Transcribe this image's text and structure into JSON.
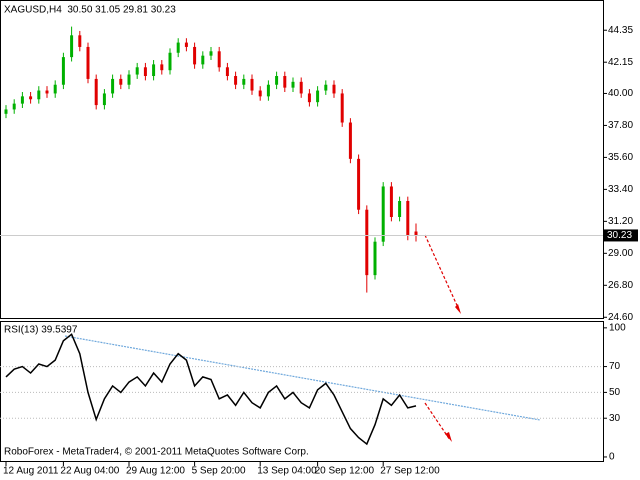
{
  "chart_data": [
    {
      "type": "candlestick",
      "title": "XAGUSD,H4  30.50 31.05 29.81 30.23",
      "open": [
        38.6,
        38.9,
        39.3,
        39.8,
        39.6,
        40.2,
        40.0,
        40.6,
        42.5,
        44.0,
        43.2,
        41.0,
        39.2,
        40.0,
        41.0,
        40.6,
        41.3,
        41.8,
        41.2,
        42.0,
        41.6,
        42.8,
        43.5,
        43.2,
        42.0,
        42.6,
        42.9,
        41.8,
        41.2,
        40.6,
        41.0,
        40.2,
        39.8,
        40.6,
        41.2,
        40.4,
        40.8,
        40.0,
        39.4,
        40.2,
        40.6,
        40.0,
        38.0,
        35.5,
        32.0,
        27.5,
        29.8,
        33.6,
        31.5,
        32.6,
        30.5
      ],
      "high": [
        39.2,
        39.6,
        40.1,
        40.1,
        40.5,
        40.5,
        40.9,
        42.8,
        44.6,
        44.3,
        43.5,
        41.3,
        40.3,
        41.3,
        41.3,
        41.6,
        42.1,
        42.1,
        42.3,
        42.3,
        43.1,
        43.8,
        43.8,
        43.5,
        42.9,
        43.2,
        43.2,
        42.1,
        41.5,
        41.3,
        41.3,
        40.5,
        40.9,
        41.5,
        41.5,
        41.1,
        41.1,
        40.3,
        40.5,
        40.9,
        40.9,
        40.3,
        38.3,
        35.8,
        32.3,
        30.1,
        33.9,
        33.9,
        32.9,
        32.9,
        31.05
      ],
      "low": [
        38.3,
        38.6,
        39.0,
        39.3,
        39.3,
        39.7,
        39.7,
        40.3,
        42.2,
        42.9,
        40.7,
        38.9,
        38.9,
        39.7,
        40.3,
        40.3,
        41.0,
        40.9,
        40.9,
        41.3,
        41.3,
        42.5,
        42.9,
        41.7,
        41.7,
        42.3,
        41.5,
        40.9,
        40.3,
        40.3,
        39.9,
        39.5,
        39.5,
        40.3,
        40.1,
        40.1,
        39.7,
        39.1,
        39.1,
        39.9,
        39.7,
        37.7,
        35.2,
        31.7,
        26.3,
        27.2,
        29.5,
        31.2,
        31.2,
        29.9,
        29.81
      ],
      "close": [
        38.9,
        39.3,
        39.8,
        39.6,
        40.2,
        40.0,
        40.6,
        42.5,
        44.0,
        43.2,
        41.0,
        39.2,
        40.0,
        41.0,
        40.6,
        41.3,
        41.8,
        41.2,
        42.0,
        41.6,
        42.8,
        43.5,
        43.2,
        42.0,
        42.6,
        42.9,
        41.8,
        41.2,
        40.6,
        41.0,
        40.2,
        39.8,
        40.6,
        41.2,
        40.4,
        40.8,
        40.0,
        39.4,
        40.2,
        40.6,
        40.0,
        38.0,
        35.5,
        32.0,
        27.5,
        29.8,
        33.6,
        31.5,
        32.6,
        30.2,
        30.23
      ],
      "up_color": "#00b000",
      "down_color": "#e00000",
      "last_price": 30.23,
      "ylim": [
        24.55,
        46.43
      ],
      "yticks": [
        44.35,
        42.15,
        {
          "value": 40.0,
          "label": "40.00"
        },
        {
          "value": 37.8,
          "label": "37.80"
        },
        {
          "value": 35.6,
          "label": "35.60"
        },
        {
          "value": 33.4,
          "label": "33.40"
        },
        {
          "value": 31.2,
          "label": "31.20"
        },
        {
          "value": 29.0,
          "label": "29.00"
        },
        {
          "value": 26.8,
          "label": "26.80"
        },
        {
          "value": 24.6,
          "label": "24.60"
        }
      ]
    },
    {
      "type": "line",
      "title": "RSI(13) 39.5397",
      "footer": "RoboForex - MetaTrader4, © 2001-2011 MetaQuotes Software Corp.",
      "categories": [
        "12 Aug 2011",
        null,
        null,
        null,
        null,
        null,
        null,
        "22 Aug 04:00",
        null,
        null,
        null,
        null,
        null,
        null,
        null,
        "29 Aug 12:00",
        null,
        null,
        null,
        null,
        null,
        null,
        null,
        "5 Sep 20:00",
        null,
        null,
        null,
        null,
        null,
        null,
        null,
        "13 Sep 04:00",
        null,
        null,
        null,
        null,
        null,
        null,
        "20 Sep 12:00",
        null,
        null,
        null,
        null,
        null,
        null,
        null,
        "27 Sep 12:00",
        null,
        null,
        null,
        null
      ],
      "values": [
        62,
        68,
        70,
        65,
        72,
        70,
        75,
        90,
        95,
        80,
        50,
        29,
        45,
        55,
        50,
        58,
        62,
        55,
        65,
        58,
        72,
        80,
        75,
        55,
        62,
        60,
        45,
        48,
        40,
        50,
        42,
        38,
        50,
        55,
        45,
        50,
        42,
        38,
        52,
        57,
        48,
        35,
        22,
        15,
        10,
        25,
        45,
        40,
        48,
        38,
        39.5397
      ],
      "color": "#000000",
      "ylim": [
        -3.9,
        105.3
      ],
      "yticks": [
        100,
        70,
        50,
        30,
        0
      ]
    }
  ]
}
